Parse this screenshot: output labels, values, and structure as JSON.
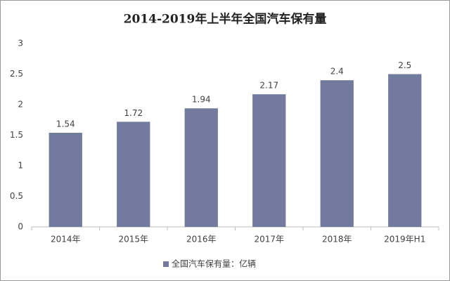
{
  "chart_data": {
    "type": "bar",
    "title": "2014-2019年上半年全国汽车保有量",
    "categories": [
      "2014年",
      "2015年",
      "2016年",
      "2017年",
      "2018年",
      "2019年H1"
    ],
    "series": [
      {
        "name": "全国汽车保有量：亿辆",
        "color": "#727b9d",
        "values": [
          1.54,
          1.72,
          1.94,
          2.17,
          2.4,
          2.5
        ]
      }
    ],
    "ylim": [
      0,
      3
    ],
    "yticks": [
      0,
      0.5,
      1,
      1.5,
      2,
      2.5,
      3
    ],
    "grid": false,
    "legend": "bottom"
  }
}
